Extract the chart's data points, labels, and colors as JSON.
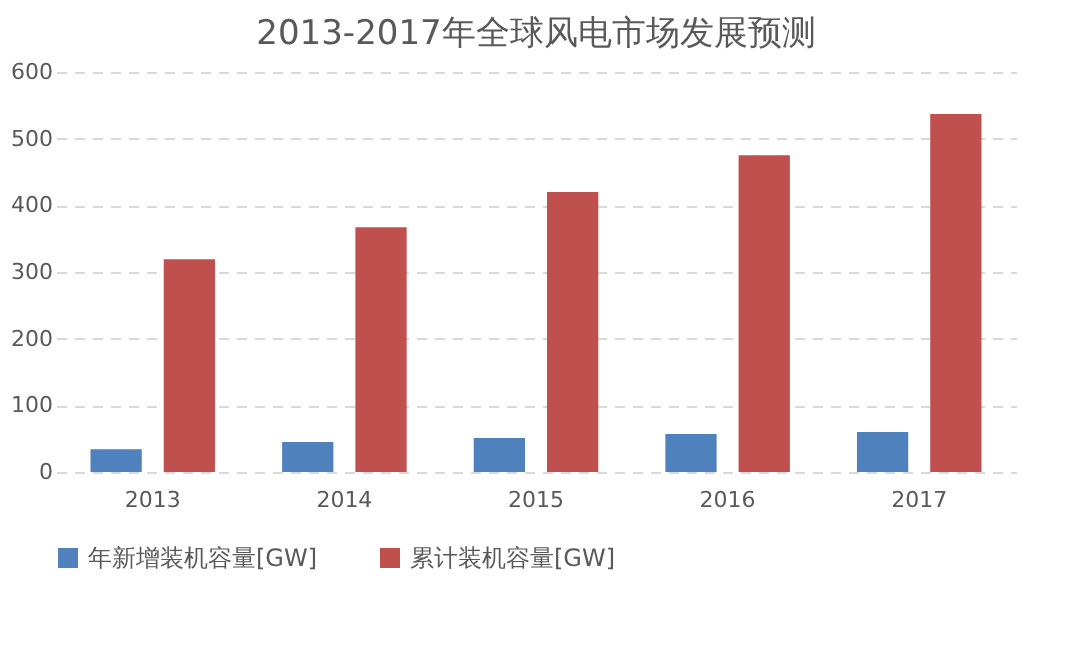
{
  "chart_data": {
    "type": "bar",
    "title": "2013-2017年全球风电市场发展预测",
    "categories": [
      "2013",
      "2014",
      "2015",
      "2016",
      "2017"
    ],
    "series": [
      {
        "name": "年新增装机容量[GW]",
        "color": "#4f81bd",
        "values": [
          34,
          45,
          51,
          57,
          60
        ]
      },
      {
        "name": "累计装机容量[GW]",
        "color": "#c0504d",
        "values": [
          319,
          367,
          420,
          475,
          537
        ]
      }
    ],
    "ylim": [
      0,
      600
    ],
    "yticks": [
      0,
      100,
      200,
      300,
      400,
      500,
      600
    ],
    "grid": "y",
    "legend": "bottom"
  }
}
